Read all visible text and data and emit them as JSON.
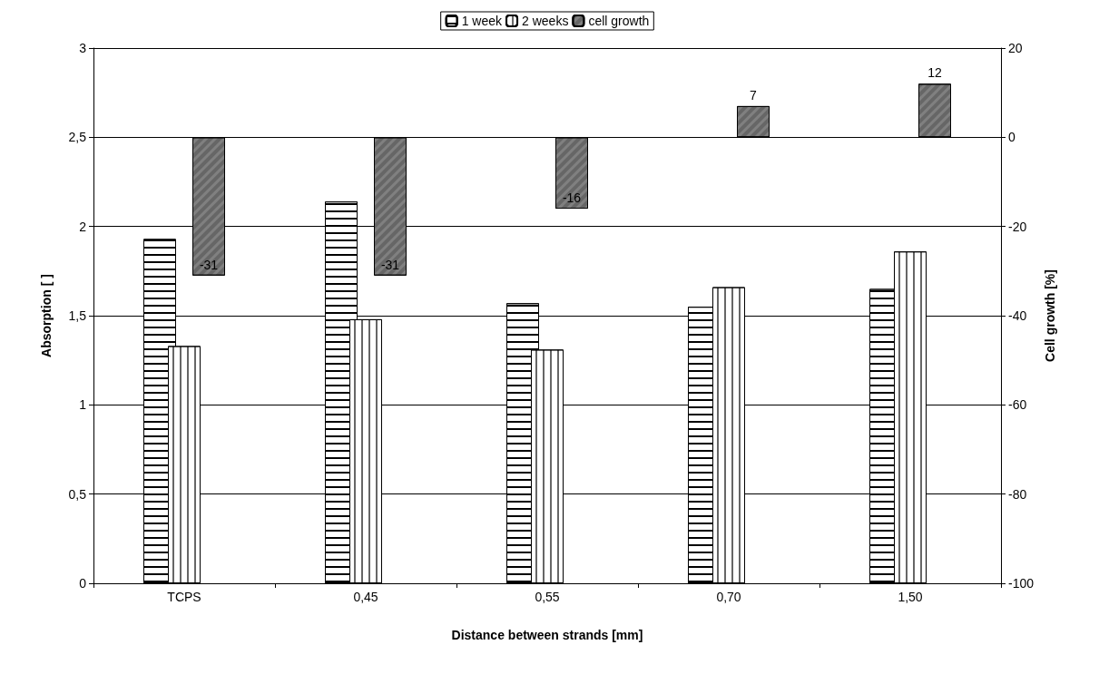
{
  "chart_data": {
    "type": "bar",
    "xlabel": "Distance between strands [mm]",
    "ylabel": "Absorption [ ]",
    "y2label": "Cell growth [%]",
    "categories": [
      "TCPS",
      "0,45",
      "0,55",
      "0,70",
      "1,50"
    ],
    "series": [
      {
        "name": "1 week",
        "color": "#ffffff",
        "values": [
          1.93,
          2.14,
          1.57,
          1.55,
          1.65
        ]
      },
      {
        "name": "2 weeks",
        "color": "#ffffff",
        "values": [
          1.33,
          1.48,
          1.31,
          1.66,
          1.86
        ]
      },
      {
        "name": "cell growth",
        "color": "#808080",
        "axis": "y2",
        "values": [
          -31,
          -31,
          -16,
          7,
          12
        ],
        "value_labels": [
          "-31",
          "-31",
          "-16",
          "7",
          "12"
        ]
      }
    ],
    "ylim": [
      0,
      3
    ],
    "yticks": [
      0,
      {
        "value": 0.5,
        "label": "0,5"
      },
      1,
      {
        "value": 1.5,
        "label": "1,5"
      },
      2,
      {
        "value": 2.5,
        "label": "2,5"
      },
      3
    ],
    "y2lim": [
      -100,
      20
    ],
    "y2ticks": [
      -100,
      -80,
      -60,
      -40,
      -20,
      0,
      20
    ],
    "grid": "y",
    "legend": "top"
  }
}
